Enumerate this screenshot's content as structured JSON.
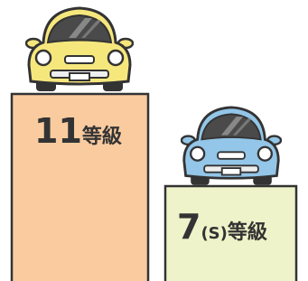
{
  "podiums": [
    {
      "number": "11",
      "suffix": "等級"
    },
    {
      "number": "7",
      "note": "(S)",
      "suffix": "等級"
    }
  ]
}
